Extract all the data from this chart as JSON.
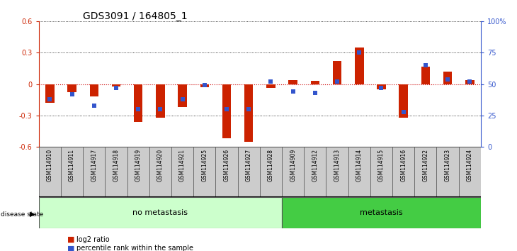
{
  "title": "GDS3091 / 164805_1",
  "samples": [
    "GSM114910",
    "GSM114911",
    "GSM114917",
    "GSM114918",
    "GSM114919",
    "GSM114920",
    "GSM114921",
    "GSM114925",
    "GSM114926",
    "GSM114927",
    "GSM114928",
    "GSM114909",
    "GSM114912",
    "GSM114913",
    "GSM114914",
    "GSM114915",
    "GSM114916",
    "GSM114922",
    "GSM114923",
    "GSM114924"
  ],
  "log2_ratio": [
    -0.18,
    -0.08,
    -0.12,
    -0.02,
    -0.36,
    -0.32,
    -0.22,
    -0.03,
    -0.52,
    -0.55,
    -0.04,
    0.04,
    0.03,
    0.22,
    0.35,
    -0.05,
    -0.32,
    0.17,
    0.12,
    0.04
  ],
  "percentile": [
    38,
    42,
    33,
    47,
    30,
    30,
    38,
    49,
    30,
    30,
    52,
    44,
    43,
    52,
    75,
    47,
    28,
    65,
    54,
    52
  ],
  "no_metastasis_count": 11,
  "metastasis_count": 9,
  "ylim_left": [
    -0.6,
    0.6
  ],
  "ylim_right": [
    0,
    100
  ],
  "yticks_left": [
    -0.6,
    -0.3,
    0.0,
    0.3,
    0.6
  ],
  "ytick_labels_left": [
    "-0.6",
    "-0.3",
    "0",
    "0.3",
    "0.6"
  ],
  "yticks_right": [
    0,
    25,
    50,
    75,
    100
  ],
  "ytick_labels_right": [
    "0",
    "25",
    "50",
    "75",
    "100%"
  ],
  "bar_color": "#cc2200",
  "dot_color": "#3355cc",
  "bg_color_no_meta": "#ccffcc",
  "bg_color_meta": "#44cc44",
  "bg_color_label_area": "#cccccc",
  "zero_line_color": "#cc0000",
  "grid_color": "#111111",
  "title_fontsize": 10,
  "tick_fontsize": 7,
  "bar_width": 0.4,
  "dot_size": 0.18
}
